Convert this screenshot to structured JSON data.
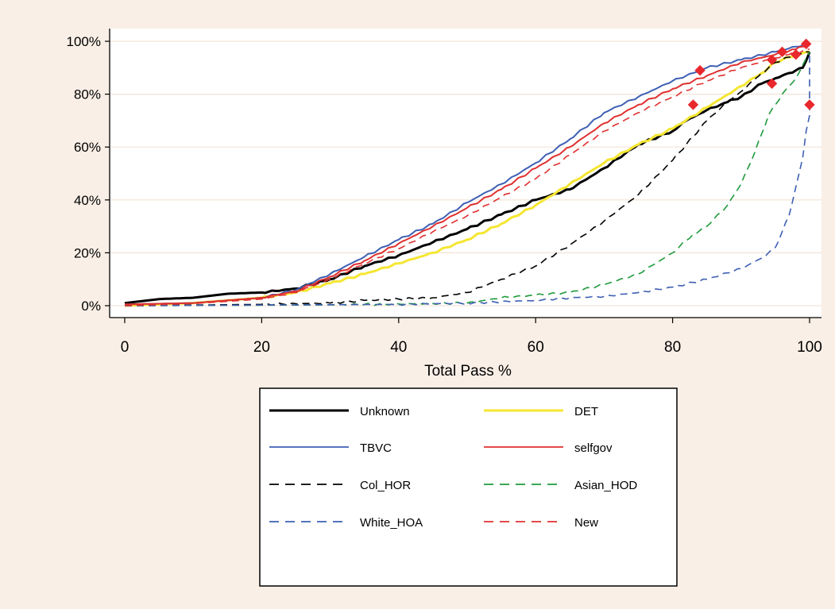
{
  "chart_data": {
    "type": "line",
    "title": "",
    "xlabel": "Total Pass %",
    "ylabel": "",
    "xlim": [
      0,
      100
    ],
    "ylim": [
      0,
      1
    ],
    "x_ticks": [
      0,
      20,
      40,
      60,
      80,
      100
    ],
    "x_tick_labels": [
      "0",
      "20",
      "40",
      "60",
      "80",
      "100"
    ],
    "y_ticks": [
      0,
      0.2,
      0.4,
      0.6,
      0.8,
      1.0
    ],
    "y_tick_labels": [
      "0%",
      "20%",
      "40%",
      "60%",
      "80%",
      "100%"
    ],
    "grid": "horizontal",
    "legend_position": "bottom",
    "series": [
      {
        "name": "Unknown",
        "color": "#000000",
        "dash": "solid",
        "width": 3,
        "points": [
          [
            0,
            0.01
          ],
          [
            5,
            0.025
          ],
          [
            10,
            0.03
          ],
          [
            15,
            0.045
          ],
          [
            20,
            0.05
          ],
          [
            25,
            0.065
          ],
          [
            30,
            0.1
          ],
          [
            35,
            0.15
          ],
          [
            40,
            0.19
          ],
          [
            45,
            0.24
          ],
          [
            50,
            0.29
          ],
          [
            55,
            0.345
          ],
          [
            60,
            0.4
          ],
          [
            65,
            0.44
          ],
          [
            70,
            0.52
          ],
          [
            75,
            0.61
          ],
          [
            80,
            0.66
          ],
          [
            82,
            0.7
          ],
          [
            85,
            0.74
          ],
          [
            88,
            0.77
          ],
          [
            90,
            0.79
          ],
          [
            93,
            0.84
          ],
          [
            95,
            0.86
          ],
          [
            97,
            0.88
          ],
          [
            99,
            0.9
          ],
          [
            100,
            0.96
          ]
        ],
        "marker": [
          96,
          0.96
        ]
      },
      {
        "name": "DET",
        "color": "#f5e632",
        "dash": "solid",
        "width": 3,
        "points": [
          [
            0,
            0
          ],
          [
            10,
            0.01
          ],
          [
            20,
            0.03
          ],
          [
            25,
            0.05
          ],
          [
            30,
            0.085
          ],
          [
            35,
            0.12
          ],
          [
            40,
            0.16
          ],
          [
            45,
            0.2
          ],
          [
            50,
            0.25
          ],
          [
            55,
            0.31
          ],
          [
            60,
            0.38
          ],
          [
            65,
            0.46
          ],
          [
            70,
            0.54
          ],
          [
            75,
            0.61
          ],
          [
            80,
            0.67
          ],
          [
            85,
            0.75
          ],
          [
            90,
            0.83
          ],
          [
            93,
            0.88
          ],
          [
            95,
            0.92
          ],
          [
            98,
            0.95
          ],
          [
            100,
            0.96
          ]
        ],
        "marker": [
          98,
          0.95
        ]
      },
      {
        "name": "TBVC",
        "color": "#3e5fb3",
        "dash": "solid",
        "width": 2,
        "points": [
          [
            0,
            0.005
          ],
          [
            10,
            0.01
          ],
          [
            20,
            0.03
          ],
          [
            25,
            0.06
          ],
          [
            30,
            0.12
          ],
          [
            35,
            0.185
          ],
          [
            40,
            0.25
          ],
          [
            45,
            0.31
          ],
          [
            50,
            0.39
          ],
          [
            55,
            0.46
          ],
          [
            60,
            0.54
          ],
          [
            65,
            0.63
          ],
          [
            70,
            0.73
          ],
          [
            75,
            0.79
          ],
          [
            80,
            0.85
          ],
          [
            85,
            0.9
          ],
          [
            90,
            0.93
          ],
          [
            95,
            0.96
          ],
          [
            98,
            0.98
          ],
          [
            100,
            0.99
          ]
        ],
        "marker": [
          84,
          0.89
        ]
      },
      {
        "name": "selfgov",
        "color": "#e03030",
        "dash": "solid",
        "width": 2,
        "points": [
          [
            0,
            0.005
          ],
          [
            10,
            0.01
          ],
          [
            20,
            0.03
          ],
          [
            25,
            0.055
          ],
          [
            30,
            0.11
          ],
          [
            35,
            0.17
          ],
          [
            40,
            0.235
          ],
          [
            45,
            0.3
          ],
          [
            50,
            0.37
          ],
          [
            55,
            0.44
          ],
          [
            60,
            0.52
          ],
          [
            65,
            0.6
          ],
          [
            70,
            0.69
          ],
          [
            75,
            0.76
          ],
          [
            80,
            0.82
          ],
          [
            85,
            0.87
          ],
          [
            90,
            0.92
          ],
          [
            95,
            0.95
          ],
          [
            98,
            0.97
          ],
          [
            100,
            0.99
          ]
        ],
        "marker": [
          99.5,
          0.99
        ]
      },
      {
        "name": "Col_HOR",
        "color": "#000000",
        "dash": "dashed",
        "width": 1.6,
        "points": [
          [
            0,
            0
          ],
          [
            20,
            0.005
          ],
          [
            30,
            0.01
          ],
          [
            35,
            0.02
          ],
          [
            45,
            0.03
          ],
          [
            50,
            0.05
          ],
          [
            55,
            0.1
          ],
          [
            60,
            0.15
          ],
          [
            65,
            0.23
          ],
          [
            70,
            0.32
          ],
          [
            75,
            0.42
          ],
          [
            80,
            0.55
          ],
          [
            85,
            0.7
          ],
          [
            88,
            0.77
          ],
          [
            90,
            0.81
          ],
          [
            93,
            0.88
          ],
          [
            95,
            0.92
          ],
          [
            98,
            0.95
          ],
          [
            100,
            0.96
          ]
        ],
        "marker": [
          94.5,
          0.93
        ]
      },
      {
        "name": "Asian_HOD",
        "color": "#1e9a3c",
        "dash": "dashed",
        "width": 1.6,
        "points": [
          [
            0,
            0
          ],
          [
            30,
            0.003
          ],
          [
            50,
            0.01
          ],
          [
            55,
            0.03
          ],
          [
            60,
            0.04
          ],
          [
            65,
            0.05
          ],
          [
            70,
            0.08
          ],
          [
            75,
            0.12
          ],
          [
            80,
            0.2
          ],
          [
            83,
            0.27
          ],
          [
            85,
            0.3
          ],
          [
            88,
            0.38
          ],
          [
            90,
            0.46
          ],
          [
            92,
            0.58
          ],
          [
            94,
            0.72
          ],
          [
            96,
            0.8
          ],
          [
            98,
            0.86
          ],
          [
            100,
            0.96
          ]
        ],
        "marker": [
          100,
          0.76
        ]
      },
      {
        "name": "White_HOA",
        "color": "#3e5fb3",
        "dash": "dashed",
        "width": 1.6,
        "points": [
          [
            0,
            0
          ],
          [
            40,
            0.005
          ],
          [
            50,
            0.01
          ],
          [
            60,
            0.02
          ],
          [
            65,
            0.03
          ],
          [
            70,
            0.035
          ],
          [
            75,
            0.05
          ],
          [
            80,
            0.07
          ],
          [
            85,
            0.1
          ],
          [
            90,
            0.14
          ],
          [
            93,
            0.18
          ],
          [
            95,
            0.22
          ],
          [
            97,
            0.34
          ],
          [
            98,
            0.45
          ],
          [
            99,
            0.56
          ],
          [
            99.5,
            0.66
          ],
          [
            100,
            0.72
          ],
          [
            100,
            0.96
          ]
        ],
        "marker": [
          83,
          0.76
        ]
      },
      {
        "name": "New",
        "color": "#e03030",
        "dash": "dashed",
        "width": 1.6,
        "points": [
          [
            0,
            0
          ],
          [
            10,
            0.008
          ],
          [
            20,
            0.025
          ],
          [
            25,
            0.05
          ],
          [
            30,
            0.1
          ],
          [
            35,
            0.16
          ],
          [
            40,
            0.215
          ],
          [
            45,
            0.28
          ],
          [
            50,
            0.34
          ],
          [
            55,
            0.41
          ],
          [
            60,
            0.48
          ],
          [
            65,
            0.57
          ],
          [
            70,
            0.66
          ],
          [
            75,
            0.73
          ],
          [
            80,
            0.79
          ],
          [
            85,
            0.85
          ],
          [
            90,
            0.9
          ],
          [
            94,
            0.93
          ],
          [
            97,
            0.95
          ],
          [
            100,
            0.97
          ]
        ],
        "marker": [
          94.5,
          0.84
        ]
      }
    ]
  }
}
